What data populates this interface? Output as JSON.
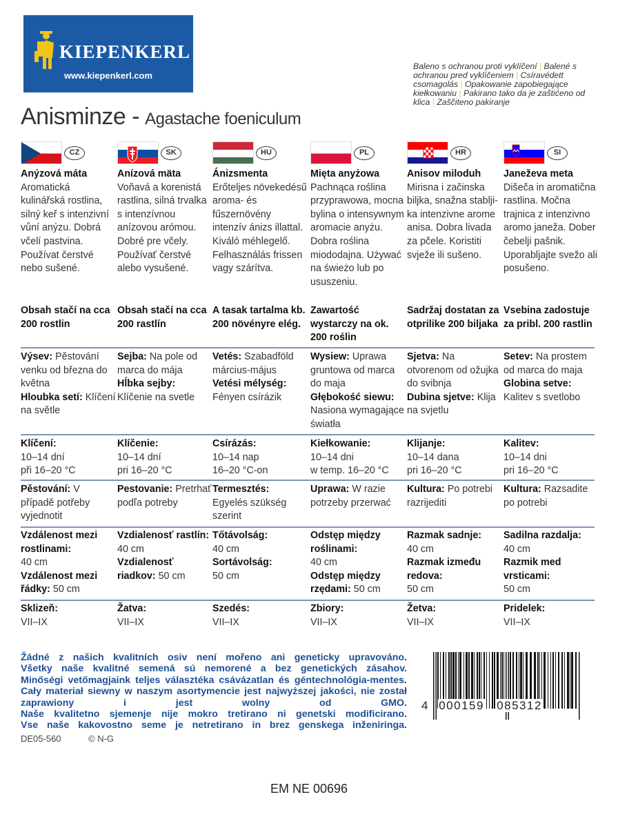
{
  "brand": {
    "name": "KIEPENKERL",
    "url": "www.kiepenkerl.com",
    "color": "#1d5aa6"
  },
  "packaging_note": [
    "Baleno s ochranou proti vyklíčení",
    "Balené s ochranou pred vyklíčeniem",
    "Csíravédett csomagolás",
    "Opakowanie zapobiegające kiełkowaniu",
    "Pakirano tako da je zaštićeno od klica",
    "Zaščiteno pakiranje"
  ],
  "title": {
    "main": "Anisminze -",
    "latin": "Agastache foeniculum"
  },
  "languages": [
    {
      "code": "CZ",
      "name": "Anýzová máta",
      "desc": "Aromatická kulinářská rostlina, silný keř s intenzivní vůní anýzu. Dobrá včelí pastvina. Používat čerstvé nebo sušené.",
      "content": "Obsah stačí na cca 200 rostlin",
      "sowing": [
        [
          "Výsev:",
          " Pěstování venku od března do května"
        ],
        [
          "Hloubka setí:",
          " Klíčení na světle"
        ]
      ],
      "germ": [
        [
          "Klíčení:",
          ""
        ],
        [
          "",
          "10–14 dní"
        ],
        [
          "",
          "při 16–20 °C"
        ]
      ],
      "care": [
        [
          "Pěstování:",
          " V případě potřeby vyjednotit"
        ]
      ],
      "spacing": [
        [
          "Vzdálenost mezi rostlinami:",
          ""
        ],
        [
          "",
          "40 cm"
        ],
        [
          "Vzdálenost mezi řádky:",
          " 50 cm"
        ]
      ],
      "harvest": [
        [
          "Sklizeň:",
          ""
        ],
        [
          "",
          "VII–IX"
        ]
      ]
    },
    {
      "code": "SK",
      "name": "Anízová mäta",
      "desc": "Voňavá a korenistá rastlina, silná trvalka s intenzívnou anízovou arómou. Dobré pre včely. Používať čerstvé alebo vysušené.",
      "content": "Obsah stačí na cca 200 rastlín",
      "sowing": [
        [
          "Sejba:",
          " Na pole od marca do mája"
        ],
        [
          "Hĺbka sejby:",
          " Klíčenie na svetle"
        ]
      ],
      "germ": [
        [
          "Klíčenie:",
          ""
        ],
        [
          "",
          "10–14 dní"
        ],
        [
          "",
          "pri 16–20 °C"
        ]
      ],
      "care": [
        [
          "Pestovanie:",
          " Pretrhať podľa potreby"
        ]
      ],
      "spacing": [
        [
          "Vzdialenosť rastlín:",
          ""
        ],
        [
          "",
          "40 cm"
        ],
        [
          "Vzdialenosť riadkov:",
          " 50 cm"
        ]
      ],
      "harvest": [
        [
          "Žatva:",
          ""
        ],
        [
          "",
          "VII–IX"
        ]
      ]
    },
    {
      "code": "HU",
      "name": "Ánizsmenta",
      "desc": "Erőteljes növekedésű aroma- és fűszernövény intenzív ánizs illattal. Kiváló méhlegelő. Felhasználás frissen vagy szárítva.",
      "content": "A tasak tartalma kb. 200 növényre elég.",
      "sowing": [
        [
          "Vetés:",
          " Szabadföld március-május"
        ],
        [
          "Vetési mélység:",
          " Fényen csírázik"
        ]
      ],
      "germ": [
        [
          "Csírázás:",
          ""
        ],
        [
          "",
          "10–14 nap"
        ],
        [
          "",
          "16–20 °C-on"
        ]
      ],
      "care": [
        [
          "Termesztés:",
          ""
        ],
        [
          "",
          "Egyelés szükség szerint"
        ]
      ],
      "spacing": [
        [
          "Tőtávolság:",
          ""
        ],
        [
          "",
          "40 cm"
        ],
        [
          "Sortávolság:",
          ""
        ],
        [
          "",
          "50 cm"
        ]
      ],
      "harvest": [
        [
          "Szedés:",
          ""
        ],
        [
          "",
          "VII–IX"
        ]
      ]
    },
    {
      "code": "PL",
      "name": "Mięta anyżowa",
      "desc": "Pachnąca roślina przyprawowa, mocna bylina o intensywnym aromacie anyżu. Dobra roślina miododajna. Używać na świeżo lub po ususzeniu.",
      "content": "Zawartość wystarczy na ok. 200 roślin",
      "sowing": [
        [
          "Wysiew:",
          " Uprawa gruntowa od marca do maja"
        ],
        [
          "Głębokość siewu:",
          " Nasiona wymagające światła"
        ]
      ],
      "germ": [
        [
          "Kiełkowanie:",
          ""
        ],
        [
          "",
          "10–14 dni"
        ],
        [
          "",
          "w temp. 16–20 °C"
        ]
      ],
      "care": [
        [
          "Uprawa:",
          " W razie potrzeby przerwać"
        ]
      ],
      "spacing": [
        [
          "Odstęp między roślinami:",
          ""
        ],
        [
          "",
          "40 cm"
        ],
        [
          "Odstęp między rzędami:",
          " 50 cm"
        ]
      ],
      "harvest": [
        [
          "Zbiory:",
          ""
        ],
        [
          "",
          "VII–IX"
        ]
      ]
    },
    {
      "code": "HR",
      "name": "Anisov miloduh",
      "desc": "Mirisna i začinska biljka, snažna stablji-ka intenzivne arome anisa. Dobra livada za pčele. Koristiti svježe ili sušeno.",
      "content": "Sadržaj dostatan za otprilike 200 biljaka",
      "sowing": [
        [
          "Sjetva:",
          " Na otvorenom od ožujka do svibnja"
        ],
        [
          "Dubina sjetve:",
          " Klija na svjetlu"
        ]
      ],
      "germ": [
        [
          "Klijanje:",
          ""
        ],
        [
          "",
          "10–14 dana"
        ],
        [
          "",
          "pri 16–20 °C"
        ]
      ],
      "care": [
        [
          "Kultura:",
          " Po potrebi razrijediti"
        ]
      ],
      "spacing": [
        [
          "Razmak sadnje:",
          ""
        ],
        [
          "",
          "40 cm"
        ],
        [
          "Razmak između redova:",
          ""
        ],
        [
          "",
          "50 cm"
        ]
      ],
      "harvest": [
        [
          "Žetva:",
          ""
        ],
        [
          "",
          "VII–IX"
        ]
      ]
    },
    {
      "code": "SI",
      "name": "Janeževa meta",
      "desc": "Dišeča in aromatična rastlina. Močna trajnica z intenzivno aromo janeža. Dober čebelji pašnik. Uporabljajte svežo ali posušeno.",
      "content": "Vsebina zadostuje za pribl. 200 rastlin",
      "sowing": [
        [
          "Setev:",
          " Na prostem od marca do maja"
        ],
        [
          "Globina setve:",
          " Kalitev s svetlobo"
        ]
      ],
      "germ": [
        [
          "Kalitev:",
          ""
        ],
        [
          "",
          "10–14 dni"
        ],
        [
          "",
          "pri 16–20 °C"
        ]
      ],
      "care": [
        [
          "Kultura:",
          " Razsadite po potrebi"
        ]
      ],
      "spacing": [
        [
          "Sadilna razdalja:",
          ""
        ],
        [
          "",
          "40 cm"
        ],
        [
          "Razmik med vrsticami:",
          ""
        ],
        [
          "",
          "50 cm"
        ]
      ],
      "harvest": [
        [
          "Pridelek:",
          ""
        ],
        [
          "",
          "VII–IX"
        ]
      ]
    }
  ],
  "quality_statements": [
    "Žádné z našich kvalitních osiv není mořeno ani geneticky upravováno.",
    "Všetky naše kvalitné semená sú nemorené a bez genetických zásahov.",
    "Minőségi vetőmagjaink teljes választéka csávázatlan és géntechnológia-mentes.",
    "Cały materiał siewny w naszym asortymencie jest najwyższej jakości, nie został",
    "zaprawiony i jest wolny od GMO.",
    "Naše kvalitetno sjemenje nije mokro tretirano ni genetski modificirano.",
    "Vse naše kakovostno seme je netretirano in brez genskega inženiringa."
  ],
  "article_no": "DE05-560",
  "copyright": "© N-G",
  "barcode": {
    "digits": [
      "4",
      "000159",
      "085312"
    ]
  },
  "footer_code": "EM NE 00696",
  "accent": "#1d4f96"
}
